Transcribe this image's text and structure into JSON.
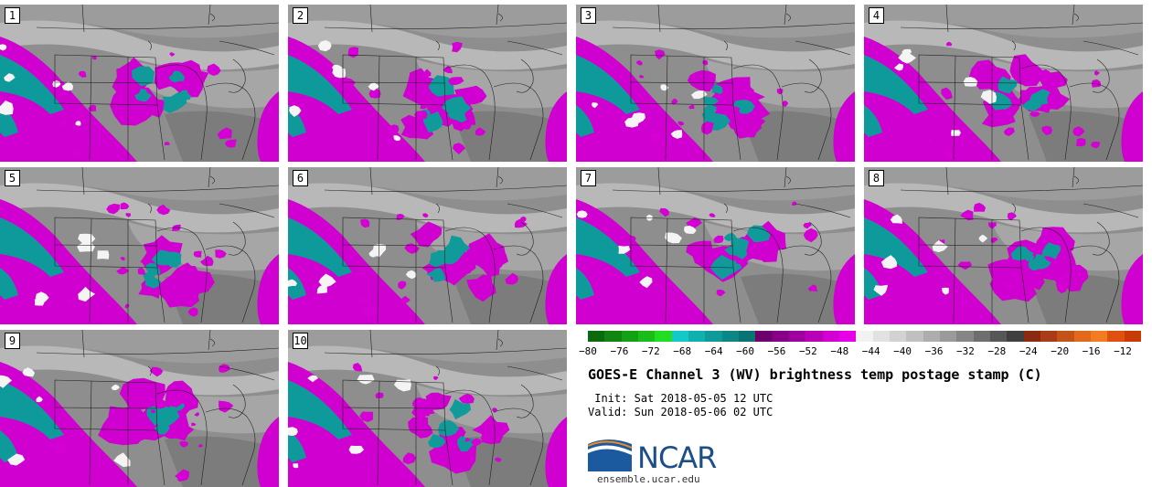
{
  "panels": [
    {
      "label": "1"
    },
    {
      "label": "2"
    },
    {
      "label": "3"
    },
    {
      "label": "4"
    },
    {
      "label": "5"
    },
    {
      "label": "6"
    },
    {
      "label": "7"
    },
    {
      "label": "8"
    },
    {
      "label": "9"
    },
    {
      "label": "10"
    }
  ],
  "colorbar": {
    "colors": [
      "#0b6a0b",
      "#108510",
      "#14a014",
      "#19bd19",
      "#22dd22",
      "#13c9c9",
      "#10b0b0",
      "#0e9a9a",
      "#0c8686",
      "#0a7474",
      "#6e006e",
      "#860086",
      "#a000a0",
      "#b900b9",
      "#d200d2",
      "#e600e6",
      "#f2f2f2",
      "#e2e2e2",
      "#d2d2d2",
      "#c0c0c0",
      "#adadad",
      "#9a9a9a",
      "#858585",
      "#6e6e6e",
      "#575757",
      "#3f3f3f",
      "#8a2a0f",
      "#a83c14",
      "#c45318",
      "#e06a1c",
      "#f47c20",
      "#e05010",
      "#c83a06"
    ],
    "ticks": [
      "−80",
      "−76",
      "−72",
      "−68",
      "−64",
      "−60",
      "−56",
      "−52",
      "−48",
      "−44",
      "−40",
      "−36",
      "−32",
      "−28",
      "−24",
      "−20",
      "−16",
      "−12"
    ]
  },
  "title": "GOES-E Channel 3 (WV) brightness temp postage stamp (C)",
  "init_label": " Init:",
  "init_value": "Sat 2018-05-05 12 UTC",
  "valid_label": "Valid:",
  "valid_value": "Sun 2018-05-06 02 UTC",
  "logo_text": "NCAR",
  "url": "ensemble.ucar.edu"
}
